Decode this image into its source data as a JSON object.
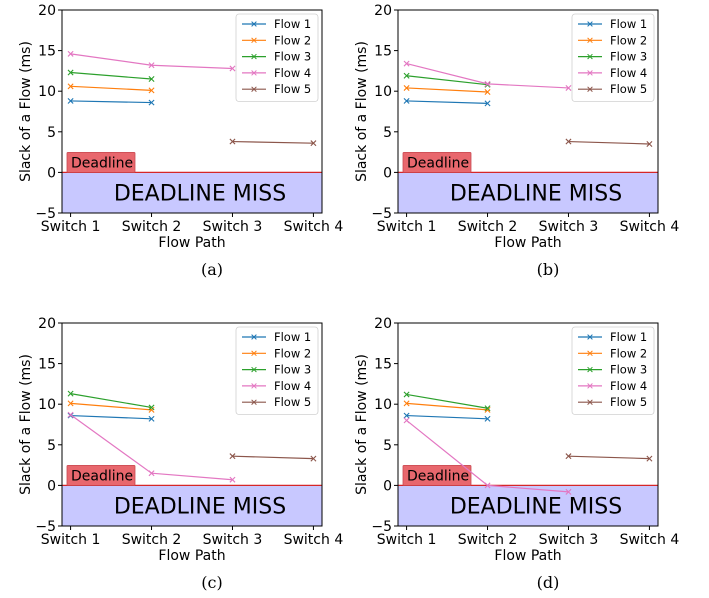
{
  "chart_data": [
    {
      "type": "line",
      "panel_label": "(a)",
      "xlabel": "Flow Path",
      "ylabel": "Slack of a Flow (ms)",
      "categories": [
        "Switch 1",
        "Switch 2",
        "Switch 3",
        "Switch 4"
      ],
      "ylim": [
        -5,
        20
      ],
      "yticks": [
        -5,
        0,
        5,
        10,
        15,
        20
      ],
      "legend_position": "top-right",
      "deadline_label": "Deadline",
      "miss_label": "DEADLINE MISS",
      "series": [
        {
          "name": "Flow 1",
          "color": "#1f77b4",
          "values": [
            8.8,
            8.6,
            null,
            null
          ]
        },
        {
          "name": "Flow 2",
          "color": "#ff7f0e",
          "values": [
            10.6,
            10.1,
            null,
            null
          ]
        },
        {
          "name": "Flow 3",
          "color": "#2ca02c",
          "values": [
            12.3,
            11.5,
            null,
            null
          ]
        },
        {
          "name": "Flow 4",
          "color": "#e377c2",
          "values": [
            14.6,
            13.2,
            12.8,
            null
          ]
        },
        {
          "name": "Flow 5",
          "color": "#8c564b",
          "values": [
            null,
            null,
            3.8,
            3.6
          ]
        }
      ]
    },
    {
      "type": "line",
      "panel_label": "(b)",
      "xlabel": "Flow Path",
      "ylabel": "Slack of a Flow (ms)",
      "categories": [
        "Switch 1",
        "Switch 2",
        "Switch 3",
        "Switch 4"
      ],
      "ylim": [
        -5,
        20
      ],
      "yticks": [
        -5,
        0,
        5,
        10,
        15,
        20
      ],
      "legend_position": "top-right",
      "deadline_label": "Deadline",
      "miss_label": "DEADLINE MISS",
      "series": [
        {
          "name": "Flow 1",
          "color": "#1f77b4",
          "values": [
            8.8,
            8.5,
            null,
            null
          ]
        },
        {
          "name": "Flow 2",
          "color": "#ff7f0e",
          "values": [
            10.4,
            9.9,
            null,
            null
          ]
        },
        {
          "name": "Flow 3",
          "color": "#2ca02c",
          "values": [
            11.9,
            10.8,
            null,
            null
          ]
        },
        {
          "name": "Flow 4",
          "color": "#e377c2",
          "values": [
            13.4,
            10.9,
            10.4,
            null
          ]
        },
        {
          "name": "Flow 5",
          "color": "#8c564b",
          "values": [
            null,
            null,
            3.8,
            3.5
          ]
        }
      ]
    },
    {
      "type": "line",
      "panel_label": "(c)",
      "xlabel": "Flow Path",
      "ylabel": "Slack of a Flow (ms)",
      "categories": [
        "Switch 1",
        "Switch 2",
        "Switch 3",
        "Switch 4"
      ],
      "ylim": [
        -5,
        20
      ],
      "yticks": [
        -5,
        0,
        5,
        10,
        15,
        20
      ],
      "legend_position": "top-right",
      "deadline_label": "Deadline",
      "miss_label": "DEADLINE MISS",
      "series": [
        {
          "name": "Flow 1",
          "color": "#1f77b4",
          "values": [
            8.6,
            8.2,
            null,
            null
          ]
        },
        {
          "name": "Flow 2",
          "color": "#ff7f0e",
          "values": [
            10.1,
            9.3,
            null,
            null
          ]
        },
        {
          "name": "Flow 3",
          "color": "#2ca02c",
          "values": [
            11.3,
            9.6,
            null,
            null
          ]
        },
        {
          "name": "Flow 4",
          "color": "#e377c2",
          "values": [
            8.7,
            1.5,
            0.7,
            null
          ]
        },
        {
          "name": "Flow 5",
          "color": "#8c564b",
          "values": [
            null,
            null,
            3.6,
            3.3
          ]
        }
      ]
    },
    {
      "type": "line",
      "panel_label": "(d)",
      "xlabel": "Flow Path",
      "ylabel": "Slack of a Flow (ms)",
      "categories": [
        "Switch 1",
        "Switch 2",
        "Switch 3",
        "Switch 4"
      ],
      "ylim": [
        -5,
        20
      ],
      "yticks": [
        -5,
        0,
        5,
        10,
        15,
        20
      ],
      "legend_position": "top-right",
      "deadline_label": "Deadline",
      "miss_label": "DEADLINE MISS",
      "series": [
        {
          "name": "Flow 1",
          "color": "#1f77b4",
          "values": [
            8.6,
            8.2,
            null,
            null
          ]
        },
        {
          "name": "Flow 2",
          "color": "#ff7f0e",
          "values": [
            10.1,
            9.3,
            null,
            null
          ]
        },
        {
          "name": "Flow 3",
          "color": "#2ca02c",
          "values": [
            11.2,
            9.5,
            null,
            null
          ]
        },
        {
          "name": "Flow 4",
          "color": "#e377c2",
          "values": [
            8.0,
            0.0,
            -0.8,
            null
          ]
        },
        {
          "name": "Flow 5",
          "color": "#8c564b",
          "values": [
            null,
            null,
            3.6,
            3.3
          ]
        }
      ]
    }
  ],
  "colors": {
    "miss_region": "#c8c8ff",
    "deadline_line": "#d62728",
    "deadline_box": "#e8676d"
  }
}
